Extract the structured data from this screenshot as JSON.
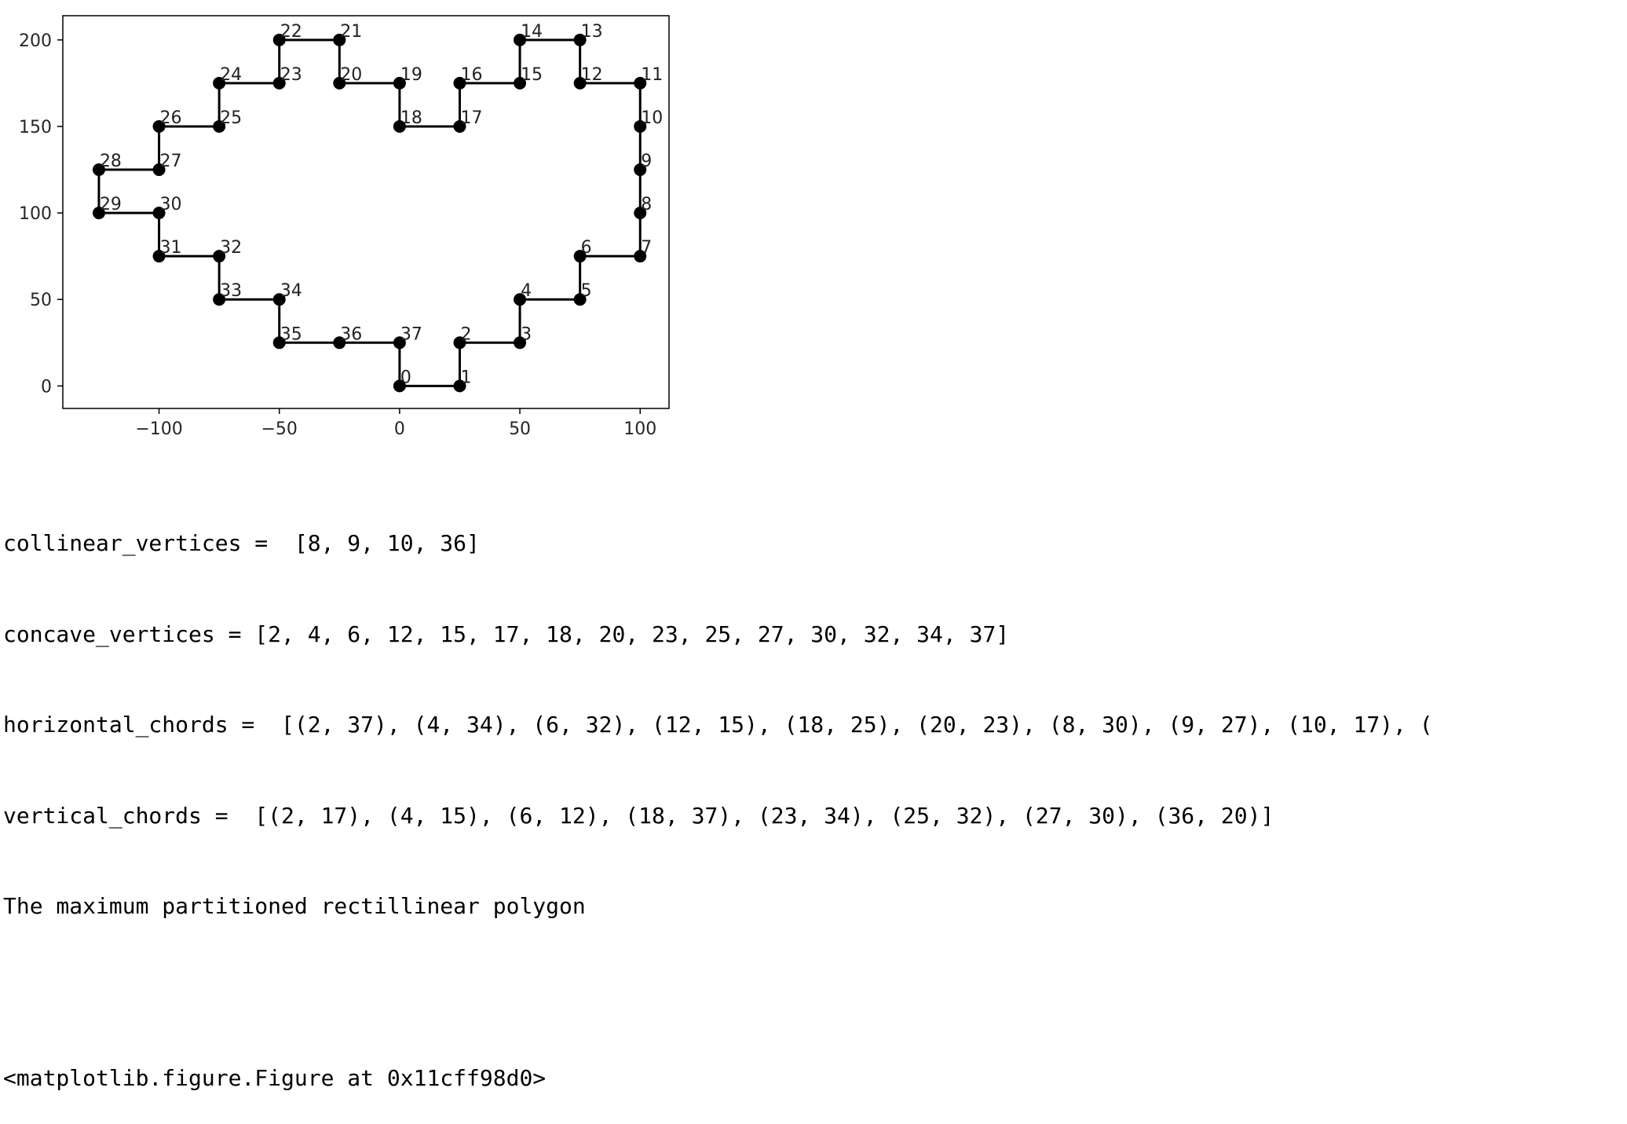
{
  "chart_data": {
    "type": "line",
    "xlim": [
      -140,
      112
    ],
    "ylim": [
      -13,
      214
    ],
    "xticks": [
      -100,
      -50,
      0,
      50,
      100
    ],
    "xtick_labels": [
      "−100",
      "−50",
      "0",
      "50",
      "100"
    ],
    "yticks": [
      0,
      50,
      100,
      150,
      200
    ],
    "ytick_labels": [
      "0",
      "50",
      "100",
      "150",
      "200"
    ],
    "grid": false,
    "series": [
      {
        "closed": true,
        "color": "#000000",
        "marker": "o",
        "points": [
          {
            "label": "0",
            "x": 0,
            "y": 0
          },
          {
            "label": "1",
            "x": 25,
            "y": 0
          },
          {
            "label": "2",
            "x": 25,
            "y": 25
          },
          {
            "label": "3",
            "x": 50,
            "y": 25
          },
          {
            "label": "4",
            "x": 50,
            "y": 50
          },
          {
            "label": "5",
            "x": 75,
            "y": 50
          },
          {
            "label": "6",
            "x": 75,
            "y": 75
          },
          {
            "label": "7",
            "x": 100,
            "y": 75
          },
          {
            "label": "8",
            "x": 100,
            "y": 100
          },
          {
            "label": "9",
            "x": 100,
            "y": 125
          },
          {
            "label": "10",
            "x": 100,
            "y": 150
          },
          {
            "label": "11",
            "x": 100,
            "y": 175
          },
          {
            "label": "12",
            "x": 75,
            "y": 175
          },
          {
            "label": "13",
            "x": 75,
            "y": 200
          },
          {
            "label": "14",
            "x": 50,
            "y": 200
          },
          {
            "label": "15",
            "x": 50,
            "y": 175
          },
          {
            "label": "16",
            "x": 25,
            "y": 175
          },
          {
            "label": "17",
            "x": 25,
            "y": 150
          },
          {
            "label": "18",
            "x": 0,
            "y": 150
          },
          {
            "label": "19",
            "x": 0,
            "y": 175
          },
          {
            "label": "20",
            "x": -25,
            "y": 175
          },
          {
            "label": "21",
            "x": -25,
            "y": 200
          },
          {
            "label": "22",
            "x": -50,
            "y": 200
          },
          {
            "label": "23",
            "x": -50,
            "y": 175
          },
          {
            "label": "24",
            "x": -75,
            "y": 175
          },
          {
            "label": "25",
            "x": -75,
            "y": 150
          },
          {
            "label": "26",
            "x": -100,
            "y": 150
          },
          {
            "label": "27",
            "x": -100,
            "y": 125
          },
          {
            "label": "28",
            "x": -125,
            "y": 125
          },
          {
            "label": "29",
            "x": -125,
            "y": 100
          },
          {
            "label": "30",
            "x": -100,
            "y": 100
          },
          {
            "label": "31",
            "x": -100,
            "y": 75
          },
          {
            "label": "32",
            "x": -75,
            "y": 75
          },
          {
            "label": "33",
            "x": -75,
            "y": 50
          },
          {
            "label": "34",
            "x": -50,
            "y": 50
          },
          {
            "label": "35",
            "x": -50,
            "y": 25
          },
          {
            "label": "36",
            "x": -25,
            "y": 25
          },
          {
            "label": "37",
            "x": 0,
            "y": 25
          }
        ]
      }
    ]
  },
  "output": {
    "collinear": "collinear_vertices =  [8, 9, 10, 36]",
    "concave": "concave_vertices = [2, 4, 6, 12, 15, 17, 18, 20, 23, 25, 27, 30, 32, 34, 37]",
    "horizontal": "horizontal_chords =  [(2, 37), (4, 34), (6, 32), (12, 15), (18, 25), (20, 23), (8, 30), (9, 27), (10, 17), (",
    "vertical": "vertical_chords =  [(2, 17), (4, 15), (6, 12), (18, 37), (23, 34), (25, 32), (27, 30), (36, 20)]",
    "message": "The maximum partitioned rectillinear polygon",
    "figure_repr": "<matplotlib.figure.Figure at 0x11cff98d0>"
  }
}
